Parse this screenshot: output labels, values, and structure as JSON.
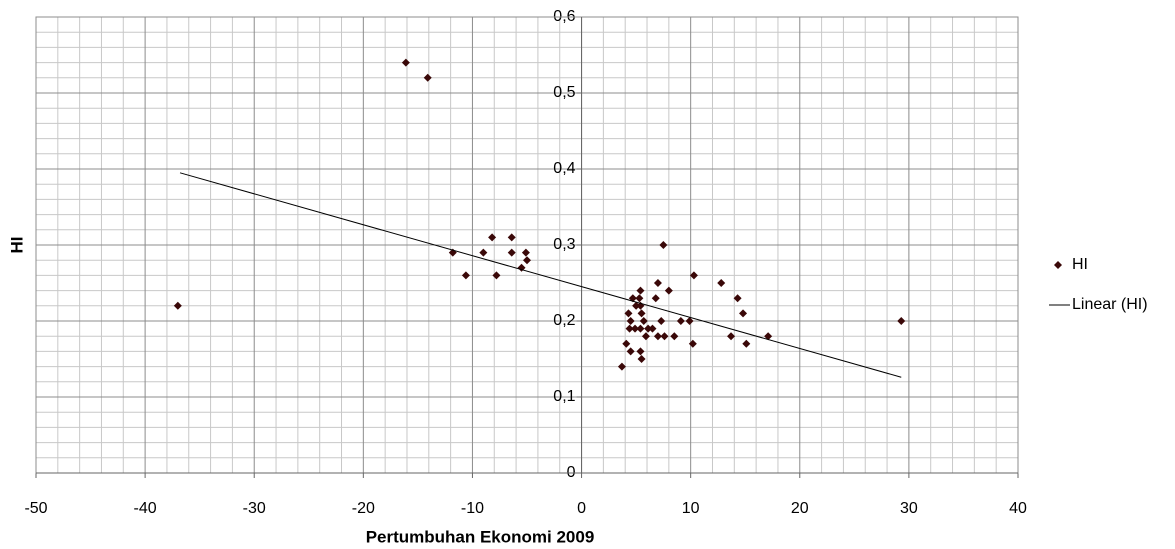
{
  "chart_data": {
    "type": "scatter",
    "x_label": "Pertumbuhan Ekonomi 2009",
    "y_label": "HI",
    "xlim": [
      -50,
      40
    ],
    "xticks": [
      -50,
      -40,
      -30,
      -20,
      -10,
      0,
      10,
      20,
      30,
      40
    ],
    "ylim": [
      0,
      0.6
    ],
    "yticks": [
      0,
      {
        "value": 0.1,
        "label": "0,1"
      },
      {
        "value": 0.2,
        "label": "0,2"
      },
      {
        "value": 0.3,
        "label": "0,3"
      },
      {
        "value": 0.4,
        "label": "0,4"
      },
      {
        "value": 0.5,
        "label": "0,5"
      },
      {
        "value": 0.6,
        "label": "0,6"
      }
    ],
    "grid": true,
    "minor_grid": true,
    "legend": "right",
    "series": [
      {
        "name": "HI",
        "type": "scatter",
        "color": "#3a0808",
        "x": [
          -37,
          -16.1,
          -14.1,
          -11.8,
          -10.6,
          -9.0,
          -8.2,
          -7.8,
          -6.4,
          -6.4,
          -5.5,
          -5.1,
          -5.0,
          3.7,
          4.1,
          4.3,
          4.5,
          4.4,
          4.5,
          4.7,
          5.0,
          4.9,
          5.4,
          5.3,
          5.4,
          5.5,
          5.4,
          5.4,
          5.5,
          5.7,
          5.9,
          6.1,
          6.5,
          6.8,
          7.0,
          7.0,
          7.3,
          7.5,
          7.6,
          8.0,
          8.5,
          9.1,
          9.9,
          10.2,
          10.3,
          12.8,
          13.7,
          14.3,
          14.8,
          15.1,
          17.1,
          29.3
        ],
        "values": [
          0.22,
          0.54,
          0.52,
          0.29,
          0.26,
          0.29,
          0.31,
          0.26,
          0.31,
          0.29,
          0.27,
          0.29,
          0.28,
          0.14,
          0.17,
          0.21,
          0.2,
          0.19,
          0.16,
          0.23,
          0.22,
          0.19,
          0.24,
          0.23,
          0.22,
          0.21,
          0.19,
          0.16,
          0.15,
          0.2,
          0.18,
          0.19,
          0.19,
          0.23,
          0.25,
          0.18,
          0.2,
          0.3,
          0.18,
          0.24,
          0.18,
          0.2,
          0.2,
          0.17,
          0.26,
          0.25,
          0.18,
          0.23,
          0.21,
          0.17,
          0.18,
          0.2
        ]
      },
      {
        "name": "Linear (HI)",
        "type": "line",
        "color": "#000000",
        "x": [
          -36.8,
          29.3
        ],
        "values": [
          0.395,
          0.126
        ]
      }
    ]
  }
}
